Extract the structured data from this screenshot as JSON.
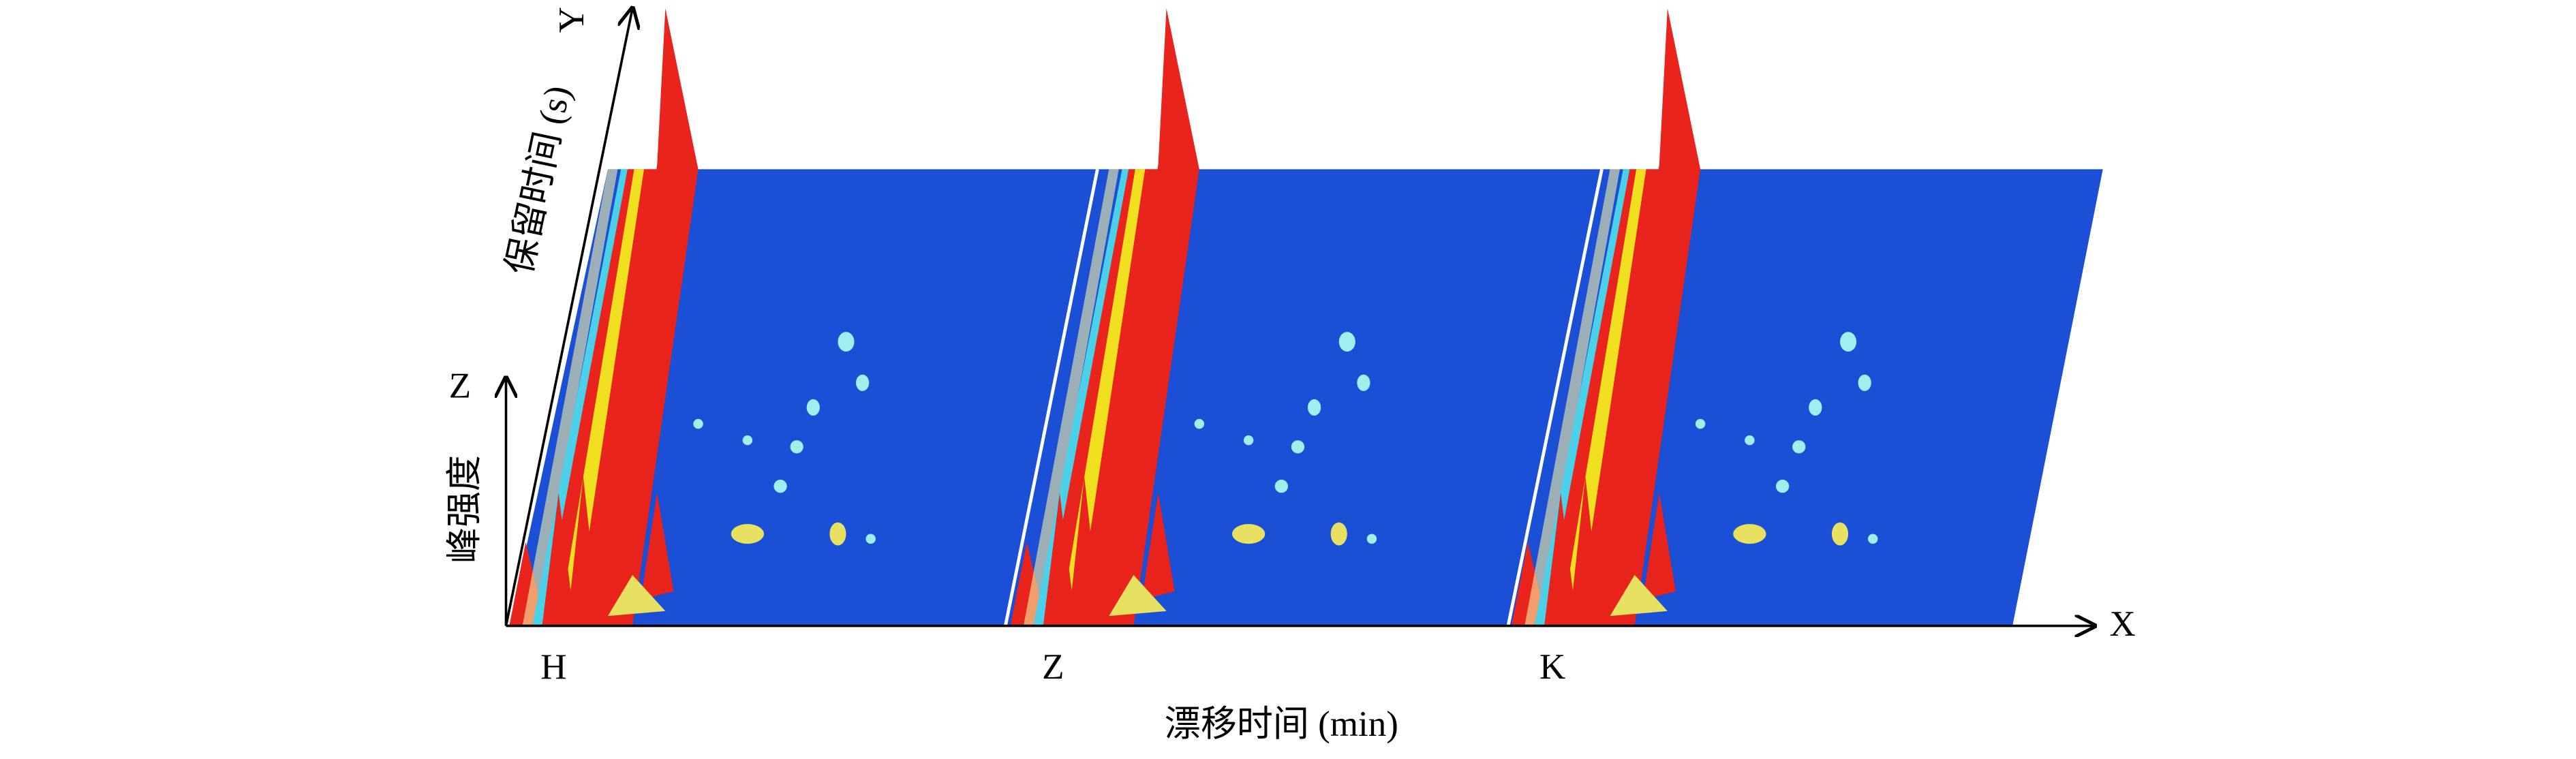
{
  "axes": {
    "x": {
      "label": "X",
      "title": "漂移时间 (min)"
    },
    "y": {
      "label": "Y",
      "title": "保留时间 (s)"
    },
    "z": {
      "label": "Z",
      "title": "峰强度"
    }
  },
  "samples": [
    "H",
    "Z",
    "K"
  ]
}
